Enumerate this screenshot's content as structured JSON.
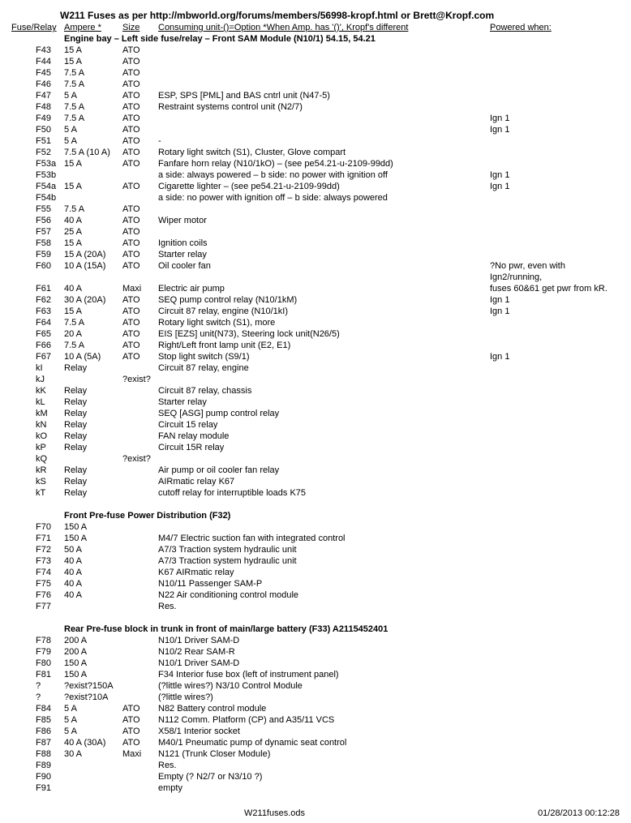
{
  "title": "W211 Fuses as per http://mbworld.org/forums/members/56998-kropf.html or Brett@Kropf.com",
  "headers": {
    "fuse": "Fuse/Relay",
    "amp": "Ampere *",
    "size": "Size",
    "unit": "Consuming unit-()=Option *When Amp. has '()', Kropf's different",
    "pwr": "Powered when:"
  },
  "sections": [
    {
      "title": "Engine bay – Left side fuse/relay – Front SAM Module (N10/1) 54.15, 54.21",
      "rows": [
        {
          "f": "F43",
          "a": "15 A",
          "s": "ATO",
          "u": "",
          "p": ""
        },
        {
          "f": "F44",
          "a": "15 A",
          "s": "ATO",
          "u": "",
          "p": ""
        },
        {
          "f": "F45",
          "a": "7.5 A",
          "s": "ATO",
          "u": "",
          "p": ""
        },
        {
          "f": "F46",
          "a": "7.5 A",
          "s": "ATO",
          "u": "",
          "p": ""
        },
        {
          "f": "F47",
          "a": "5 A",
          "s": "ATO",
          "u": "ESP, SPS [PML] and BAS cntrl unit (N47-5)",
          "p": ""
        },
        {
          "f": "F48",
          "a": "7.5 A",
          "s": "ATO",
          "u": "Restraint systems control unit (N2/7)",
          "p": ""
        },
        {
          "f": "F49",
          "a": "7.5 A",
          "s": "ATO",
          "u": "",
          "p": "Ign 1"
        },
        {
          "f": "F50",
          "a": "5 A",
          "s": "ATO",
          "u": "",
          "p": "Ign 1"
        },
        {
          "f": "F51",
          "a": "5 A",
          "s": "ATO",
          "u": "-",
          "p": ""
        },
        {
          "f": "F52",
          "a": "7.5 A (10 A)",
          "s": "ATO",
          "u": "Rotary light switch (S1), Cluster, Glove compart",
          "p": ""
        },
        {
          "f": "F53a",
          "a": "15 A",
          "s": "ATO",
          "u": "Fanfare horn relay (N10/1kO) – (see pe54.21-u-2109-99dd)",
          "p": "",
          "merge": 2
        },
        {
          "f": "F53b",
          "a": "",
          "s": "",
          "u": "a side: always powered – b side: no power with ignition off",
          "p": "Ign 1"
        },
        {
          "f": "F54a",
          "a": "15 A",
          "s": "ATO",
          "u": "Cigarette lighter – (see pe54.21-u-2109-99dd)",
          "p": "Ign 1",
          "merge": 2
        },
        {
          "f": "F54b",
          "a": "",
          "s": "",
          "u": "a side: no power with ignition off – b side: always powered",
          "p": ""
        },
        {
          "f": "F55",
          "a": "7.5 A",
          "s": "ATO",
          "u": "",
          "p": ""
        },
        {
          "f": "F56",
          "a": "40 A",
          "s": "ATO",
          "u": "Wiper motor",
          "p": ""
        },
        {
          "f": "F57",
          "a": "25 A",
          "s": "ATO",
          "u": "",
          "p": ""
        },
        {
          "f": "F58",
          "a": "15 A",
          "s": "ATO",
          "u": "Ignition coils",
          "p": ""
        },
        {
          "f": "F59",
          "a": "15 A (20A)",
          "s": "ATO",
          "u": "Starter relay",
          "p": ""
        },
        {
          "f": "F60",
          "a": "10 A (15A)",
          "s": "ATO",
          "u": "Oil cooler fan",
          "p": "?No pwr, even with Ign2/running,"
        },
        {
          "f": "F61",
          "a": "40 A",
          "s": "Maxi",
          "u": "Electric air pump",
          "p": "fuses 60&61 get pwr from kR."
        },
        {
          "f": "F62",
          "a": "30 A (20A)",
          "s": "ATO",
          "u": "SEQ pump control relay (N10/1kM)",
          "p": "Ign 1"
        },
        {
          "f": "F63",
          "a": "15 A",
          "s": "ATO",
          "u": "Circuit 87 relay, engine (N10/1kI)",
          "p": "Ign 1"
        },
        {
          "f": "F64",
          "a": "7.5 A",
          "s": "ATO",
          "u": "Rotary light switch (S1), more",
          "p": ""
        },
        {
          "f": "F65",
          "a": "20 A",
          "s": "ATO",
          "u": "EIS [EZS] unit(N73), Steering lock unit(N26/5)",
          "p": ""
        },
        {
          "f": "F66",
          "a": "7.5 A",
          "s": "ATO",
          "u": "Right/Left front lamp unit (E2, E1)",
          "p": ""
        },
        {
          "f": "F67",
          "a": "10 A (5A)",
          "s": "ATO",
          "u": "Stop light switch (S9/1)",
          "p": "Ign 1"
        },
        {
          "f": "kI",
          "a": "Relay",
          "s": "",
          "u": "Circuit 87 relay, engine",
          "p": ""
        },
        {
          "f": "kJ",
          "a": "",
          "s": "?exist?",
          "u": "",
          "p": ""
        },
        {
          "f": "kK",
          "a": "Relay",
          "s": "",
          "u": "Circuit 87 relay, chassis",
          "p": ""
        },
        {
          "f": "kL",
          "a": "Relay",
          "s": "",
          "u": "Starter relay",
          "p": ""
        },
        {
          "f": "kM",
          "a": "Relay",
          "s": "",
          "u": "SEQ [ASG] pump control relay",
          "p": ""
        },
        {
          "f": "kN",
          "a": "Relay",
          "s": "",
          "u": "Circuit 15 relay",
          "p": ""
        },
        {
          "f": "kO",
          "a": "Relay",
          "s": "",
          "u": "FAN relay module",
          "p": ""
        },
        {
          "f": "kP",
          "a": "Relay",
          "s": "",
          "u": "Circuit 15R relay",
          "p": ""
        },
        {
          "f": "kQ",
          "a": "",
          "s": "?exist?",
          "u": "",
          "p": ""
        },
        {
          "f": "kR",
          "a": "Relay",
          "s": "",
          "u": "Air pump or oil cooler fan relay",
          "p": ""
        },
        {
          "f": "kS",
          "a": "Relay",
          "s": "",
          "u": "AIRmatic relay K67",
          "p": ""
        },
        {
          "f": "kT",
          "a": "Relay",
          "s": "",
          "u": "cutoff relay for interruptible loads K75",
          "p": ""
        }
      ]
    },
    {
      "title": "Front Pre-fuse Power Distribution (F32)",
      "rows": [
        {
          "f": "F70",
          "a": "150 A",
          "s": "",
          "u": "",
          "p": ""
        },
        {
          "f": "F71",
          "a": "150 A",
          "s": "",
          "u": "M4/7 Electric suction fan with integrated control",
          "p": ""
        },
        {
          "f": "F72",
          "a": "50 A",
          "s": "",
          "u": "A7/3 Traction system hydraulic unit",
          "p": ""
        },
        {
          "f": "F73",
          "a": "40 A",
          "s": "",
          "u": "A7/3 Traction system hydraulic unit",
          "p": ""
        },
        {
          "f": "F74",
          "a": "40 A",
          "s": "",
          "u": "K67 AIRmatic relay",
          "p": ""
        },
        {
          "f": "F75",
          "a": "40 A",
          "s": "",
          "u": "N10/11 Passenger SAM-P",
          "p": ""
        },
        {
          "f": "F76",
          "a": "40 A",
          "s": "",
          "u": "N22 Air conditioning control module",
          "p": ""
        },
        {
          "f": "F77",
          "a": "",
          "s": "",
          "u": "Res.",
          "p": ""
        }
      ]
    },
    {
      "title": "Rear Pre-fuse block in trunk in front of main/large battery (F33) A2115452401",
      "rows": [
        {
          "f": "F78",
          "a": "200 A",
          "s": "",
          "u": "N10/1 Driver SAM-D",
          "p": ""
        },
        {
          "f": "F79",
          "a": "200 A",
          "s": "",
          "u": "N10/2 Rear SAM-R",
          "p": ""
        },
        {
          "f": "F80",
          "a": "150 A",
          "s": "",
          "u": "N10/1 Driver SAM-D",
          "p": ""
        },
        {
          "f": "F81",
          "a": "150 A",
          "s": "",
          "u": "F34 Interior fuse box (left of instrument panel)",
          "p": ""
        },
        {
          "f": "?",
          "a": "?exist?150A",
          "s": "",
          "u": "(?little wires?) N3/10 Control Module",
          "p": ""
        },
        {
          "f": "?",
          "a": "?exist?10A",
          "s": "",
          "u": "(?little wires?)",
          "p": ""
        },
        {
          "f": "F84",
          "a": "5 A",
          "s": "ATO",
          "u": "N82 Battery control module",
          "p": ""
        },
        {
          "f": "F85",
          "a": "5 A",
          "s": "ATO",
          "u": "N112 Comm. Platform (CP) and A35/11 VCS",
          "p": ""
        },
        {
          "f": "F86",
          "a": "5 A",
          "s": "ATO",
          "u": "X58/1 Interior socket",
          "p": ""
        },
        {
          "f": "F87",
          "a": "40 A (30A)",
          "s": "ATO",
          "u": "M40/1 Pneumatic pump of dynamic seat control",
          "p": ""
        },
        {
          "f": "F88",
          "a": "30 A",
          "s": "Maxi",
          "u": "N121 (Trunk Closer Module)",
          "p": ""
        },
        {
          "f": "F89",
          "a": "",
          "s": "",
          "u": "Res.",
          "p": ""
        },
        {
          "f": "F90",
          "a": "",
          "s": "",
          "u": "Empty (? N2/7 or N3/10 ?)",
          "p": ""
        },
        {
          "f": "F91",
          "a": "",
          "s": "",
          "u": "empty",
          "p": ""
        }
      ]
    }
  ],
  "footer": {
    "left": "",
    "center": "W211fuses.ods",
    "right": "01/28/2013 00:12:28"
  }
}
